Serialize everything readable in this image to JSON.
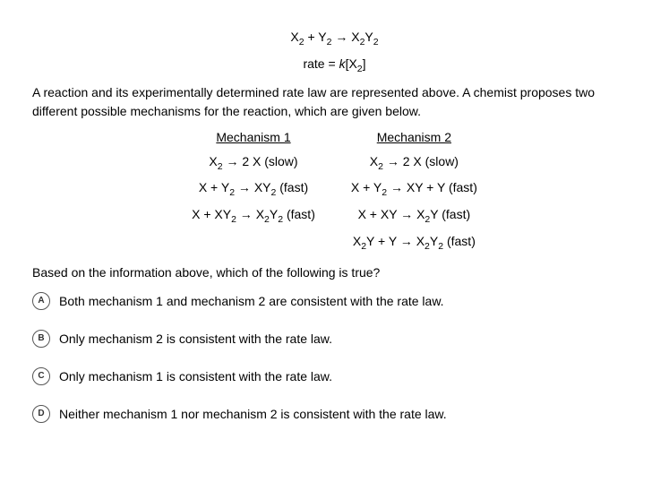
{
  "equation_html": "X<sub>2</sub> + Y<sub>2</sub> → X<sub>2</sub>Y<sub>2</sub>",
  "rate_html": "rate = <span class=\"ital\">k</span>[X<sub>2</sub>]",
  "prompt": "A reaction and its experimentally determined rate law are represented above. A chemist proposes two different possible mechanisms for the reaction, which are given below.",
  "mech1": {
    "title": "Mechanism 1",
    "steps_html": [
      "X<sub>2</sub> → 2 X (slow)",
      "X + Y<sub>2</sub> → XY<sub>2</sub> (fast)",
      "X + XY<sub>2</sub> → X<sub>2</sub>Y<sub>2</sub> (fast)"
    ]
  },
  "mech2": {
    "title": "Mechanism 2",
    "steps_html": [
      "X<sub>2</sub> → 2 X (slow)",
      "X + Y<sub>2</sub> → XY + Y (fast)",
      "X + XY → X<sub>2</sub>Y (fast)",
      "X<sub>2</sub>Y + Y → X<sub>2</sub>Y<sub>2</sub> (fast)"
    ]
  },
  "followup": "Based on the information above, which of the following is true?",
  "options": [
    {
      "letter": "A",
      "text": "Both mechanism 1 and mechanism 2 are consistent with the rate law."
    },
    {
      "letter": "B",
      "text": "Only mechanism 2 is consistent with the rate law."
    },
    {
      "letter": "C",
      "text": "Only mechanism 1 is consistent with the rate law."
    },
    {
      "letter": "D",
      "text": "Neither mechanism 1 nor mechanism 2 is consistent with the rate law."
    }
  ]
}
